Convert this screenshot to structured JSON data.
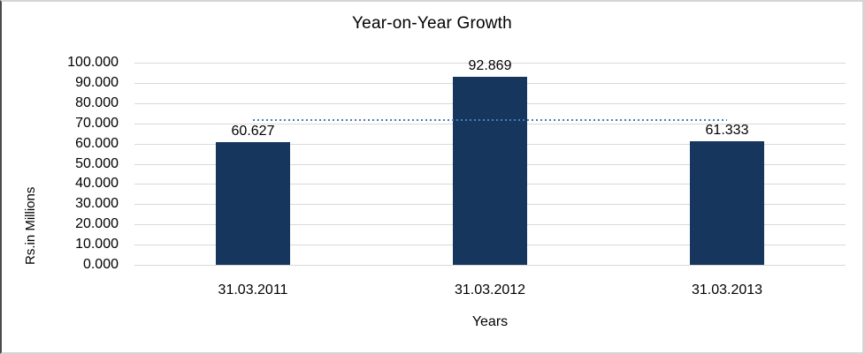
{
  "chart_data": {
    "type": "bar",
    "title": "Year-on-Year Growth",
    "xlabel": "Years",
    "ylabel": "Rs.in Millions",
    "categories": [
      "31.03.2011",
      "31.03.2012",
      "31.03.2013"
    ],
    "values": [
      60.627,
      92.869,
      61.333
    ],
    "data_labels": [
      "60.627",
      "92.869",
      "61.333"
    ],
    "ylim": [
      0,
      100
    ],
    "y_ticks": [
      {
        "value": 100,
        "label": "100.000"
      },
      {
        "value": 90,
        "label": "90.000"
      },
      {
        "value": 80,
        "label": "80.000"
      },
      {
        "value": 70,
        "label": "70.000"
      },
      {
        "value": 60,
        "label": "60.000"
      },
      {
        "value": 50,
        "label": "50.000"
      },
      {
        "value": 40,
        "label": "40.000"
      },
      {
        "value": 30,
        "label": "30.000"
      },
      {
        "value": 20,
        "label": "20.000"
      },
      {
        "value": 10,
        "label": "10.000"
      },
      {
        "value": 0,
        "label": "0.000"
      }
    ],
    "grid": true,
    "legend": "none",
    "bar_color": "#17365D",
    "gridline_color": "#D9D9D9",
    "trendline": {
      "type": "linear",
      "value": 71.61,
      "style": "dotted",
      "color": "#4A7EBB",
      "from_category_index": 0,
      "to_category_index": 2
    }
  }
}
